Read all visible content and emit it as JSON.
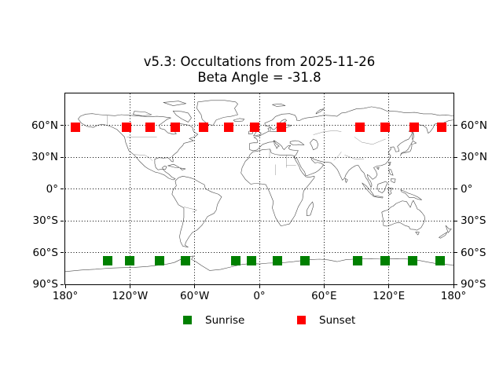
{
  "figure": {
    "title_line1": "v5.3: Occultations from 2025-11-26",
    "title_line2": "Beta Angle = -31.8",
    "background_color": "#ffffff",
    "coastline_color": "#4d4d4d",
    "border_color": "#8a8a8a"
  },
  "axes": {
    "xlim": [
      -180,
      180
    ],
    "ylim": [
      -90,
      90
    ],
    "grid_style": "dotted",
    "x_ticks": [
      {
        "lon": -180,
        "label": "180°"
      },
      {
        "lon": -120,
        "label": "120°W"
      },
      {
        "lon": -60,
        "label": "60°W"
      },
      {
        "lon": 0,
        "label": "0°"
      },
      {
        "lon": 60,
        "label": "60°E"
      },
      {
        "lon": 120,
        "label": "120°E"
      },
      {
        "lon": 180,
        "label": "180°"
      }
    ],
    "y_ticks": [
      {
        "lat": 60,
        "label": "60°N"
      },
      {
        "lat": 30,
        "label": "30°N"
      },
      {
        "lat": 0,
        "label": "0°"
      },
      {
        "lat": -30,
        "label": "30°S"
      },
      {
        "lat": -60,
        "label": "60°S"
      },
      {
        "lat": -90,
        "label": "90°S"
      }
    ]
  },
  "legend": {
    "items": [
      {
        "label": "Sunrise",
        "color": "#008000"
      },
      {
        "label": "Sunset",
        "color": "#ff0000"
      }
    ]
  },
  "chart_data": {
    "type": "scatter",
    "title": "v5.3: Occultations from 2025-11-26\nBeta Angle = -31.8",
    "xlim": [
      -180,
      180
    ],
    "ylim": [
      -90,
      90
    ],
    "grid": true,
    "legend_position": "bottom-center",
    "series": [
      {
        "name": "Sunrise",
        "marker": "square",
        "color": "#008000",
        "points": [
          [
            -140.7,
            -67.5
          ],
          [
            -120.4,
            -67.5
          ],
          [
            -92.7,
            -67.5
          ],
          [
            -68.7,
            -67.5
          ],
          [
            -21.5,
            -67.5
          ],
          [
            -7.3,
            -67.5
          ],
          [
            16.4,
            -67.5
          ],
          [
            42.5,
            -67.5
          ],
          [
            91.3,
            -67.5
          ],
          [
            116.7,
            -67.5
          ],
          [
            142.2,
            -67.5
          ],
          [
            167.6,
            -67.5
          ]
        ]
      },
      {
        "name": "Sunset",
        "marker": "square",
        "color": "#ff0000",
        "points": [
          [
            -170.5,
            58.5
          ],
          [
            -123.3,
            58.5
          ],
          [
            -101.5,
            58.5
          ],
          [
            -78.2,
            58.5
          ],
          [
            -52.0,
            58.5
          ],
          [
            -28.7,
            58.5
          ],
          [
            -4.7,
            58.5
          ],
          [
            20.7,
            58.5
          ],
          [
            93.5,
            58.5
          ],
          [
            116.7,
            58.5
          ],
          [
            143.6,
            58.5
          ],
          [
            169.1,
            58.5
          ]
        ]
      }
    ]
  }
}
